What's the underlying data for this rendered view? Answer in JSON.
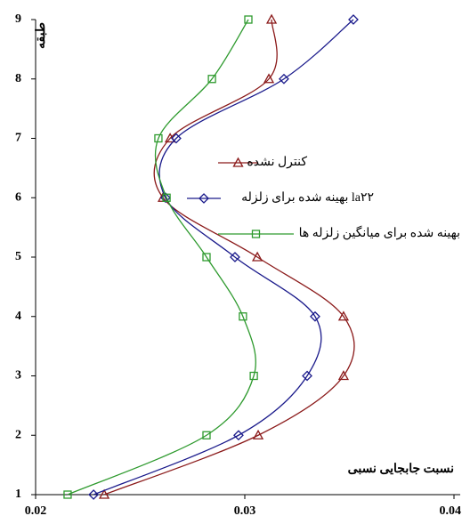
{
  "chart_data": {
    "type": "line",
    "x_label": "نسبت جابجایی نسبی",
    "y_label": "طبقه",
    "y": [
      1,
      2,
      3,
      4,
      5,
      6,
      7,
      8,
      9
    ],
    "series": [
      {
        "name": "کنترل نشده",
        "color": "#8b1a1a",
        "marker": "triangle",
        "values": [
          0.02328,
          0.03064,
          0.03472,
          0.03472,
          0.0306,
          0.02609,
          0.02643,
          0.03115,
          0.03128
        ]
      },
      {
        "name": "بهینه شده برای زلزله la۲۲",
        "color": "#1a1a8b",
        "marker": "diamond",
        "values": [
          0.02277,
          0.0297,
          0.03298,
          0.03336,
          0.02953,
          0.02621,
          0.02672,
          0.03187,
          0.03519
        ]
      },
      {
        "name": "بهینه شده برای میانگین زلزله ها",
        "color": "#2e9a2e",
        "marker": "square",
        "values": [
          0.02153,
          0.02817,
          0.03043,
          0.02991,
          0.02817,
          0.02626,
          0.02587,
          0.02843,
          0.03017
        ]
      }
    ],
    "xlim": [
      0.02,
      0.04
    ],
    "xticks": [
      0.02,
      0.03,
      {
        "value": 0.04,
        "label": "0.04"
      }
    ],
    "ylim": [
      1,
      9
    ],
    "yticks": [
      1,
      2,
      3,
      4,
      5,
      6,
      7,
      8,
      9
    ]
  }
}
